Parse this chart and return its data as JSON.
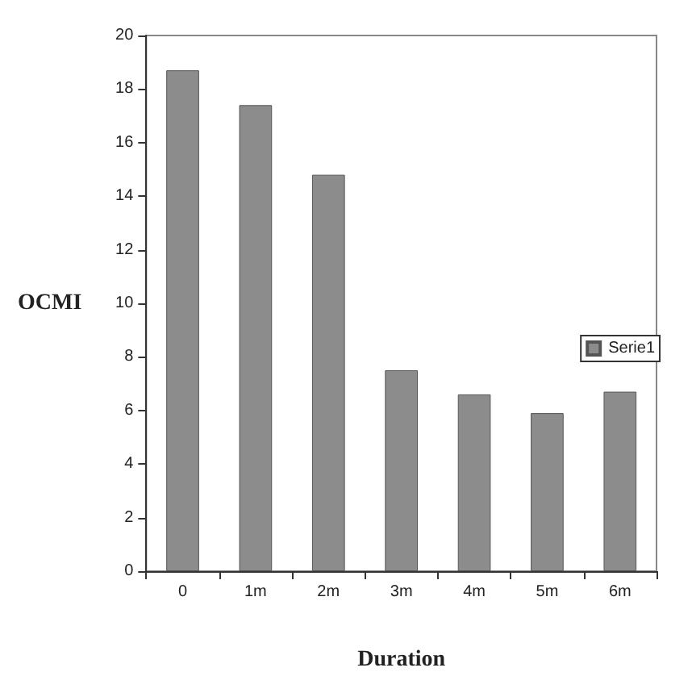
{
  "chart_data": {
    "type": "bar",
    "xlabel": "Duration",
    "ylabel": "OCMI",
    "categories": [
      "0",
      "1m",
      "2m",
      "3m",
      "4m",
      "5m",
      "6m"
    ],
    "series": [
      {
        "name": "Serie1",
        "color": "#8c8c8c",
        "values": [
          18.7,
          17.4,
          14.8,
          7.5,
          6.6,
          5.9,
          6.7
        ]
      }
    ],
    "ylim": [
      0,
      20
    ],
    "yticks": [
      0,
      2,
      4,
      6,
      8,
      10,
      12,
      14,
      16,
      18,
      20
    ],
    "grid": false,
    "legend": "right"
  }
}
